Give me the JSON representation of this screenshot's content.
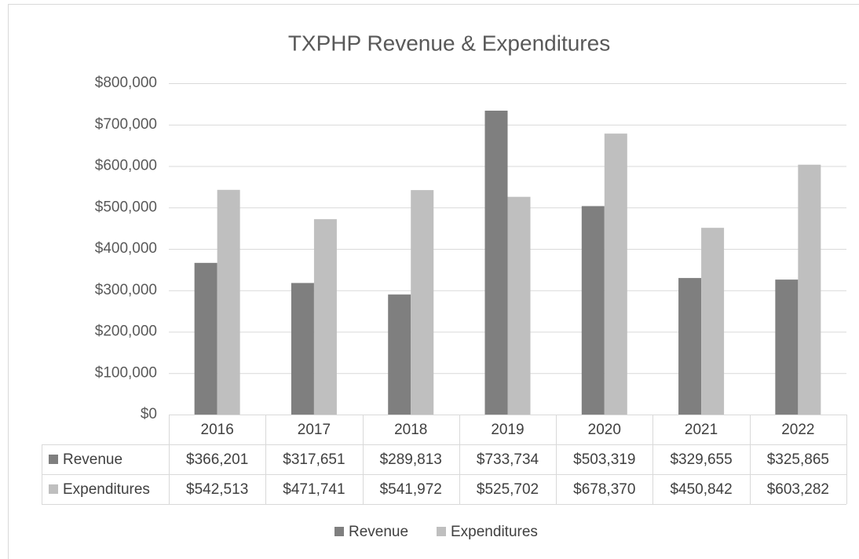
{
  "chart_data": {
    "type": "bar",
    "title": "TXPHP Revenue & Expenditures",
    "categories": [
      "2016",
      "2017",
      "2018",
      "2019",
      "2020",
      "2021",
      "2022"
    ],
    "series": [
      {
        "name": "Revenue",
        "color": "#7f7f7f",
        "values": [
          366201,
          317651,
          289813,
          733734,
          503319,
          329655,
          325865
        ],
        "value_labels": [
          "$366,201",
          "$317,651",
          "$289,813",
          "$733,734",
          "$503,319",
          "$329,655",
          "$325,865"
        ]
      },
      {
        "name": "Expenditures",
        "color": "#bfbfbf",
        "values": [
          542513,
          471741,
          541972,
          525702,
          678370,
          450842,
          603282
        ],
        "value_labels": [
          "$542,513",
          "$471,741",
          "$541,972",
          "$525,702",
          "$678,370",
          "$450,842",
          "$603,282"
        ]
      }
    ],
    "ylim": [
      0,
      800000
    ],
    "yticks": [
      {
        "value": 0,
        "label": "$0"
      },
      {
        "value": 100000,
        "label": "$100,000"
      },
      {
        "value": 200000,
        "label": "$200,000"
      },
      {
        "value": 300000,
        "label": "$300,000"
      },
      {
        "value": 400000,
        "label": "$400,000"
      },
      {
        "value": 500000,
        "label": "$500,000"
      },
      {
        "value": 600000,
        "label": "$600,000"
      },
      {
        "value": 700000,
        "label": "$700,000"
      },
      {
        "value": 800000,
        "label": "$800,000"
      }
    ],
    "grid": true,
    "legend": "bottom"
  }
}
